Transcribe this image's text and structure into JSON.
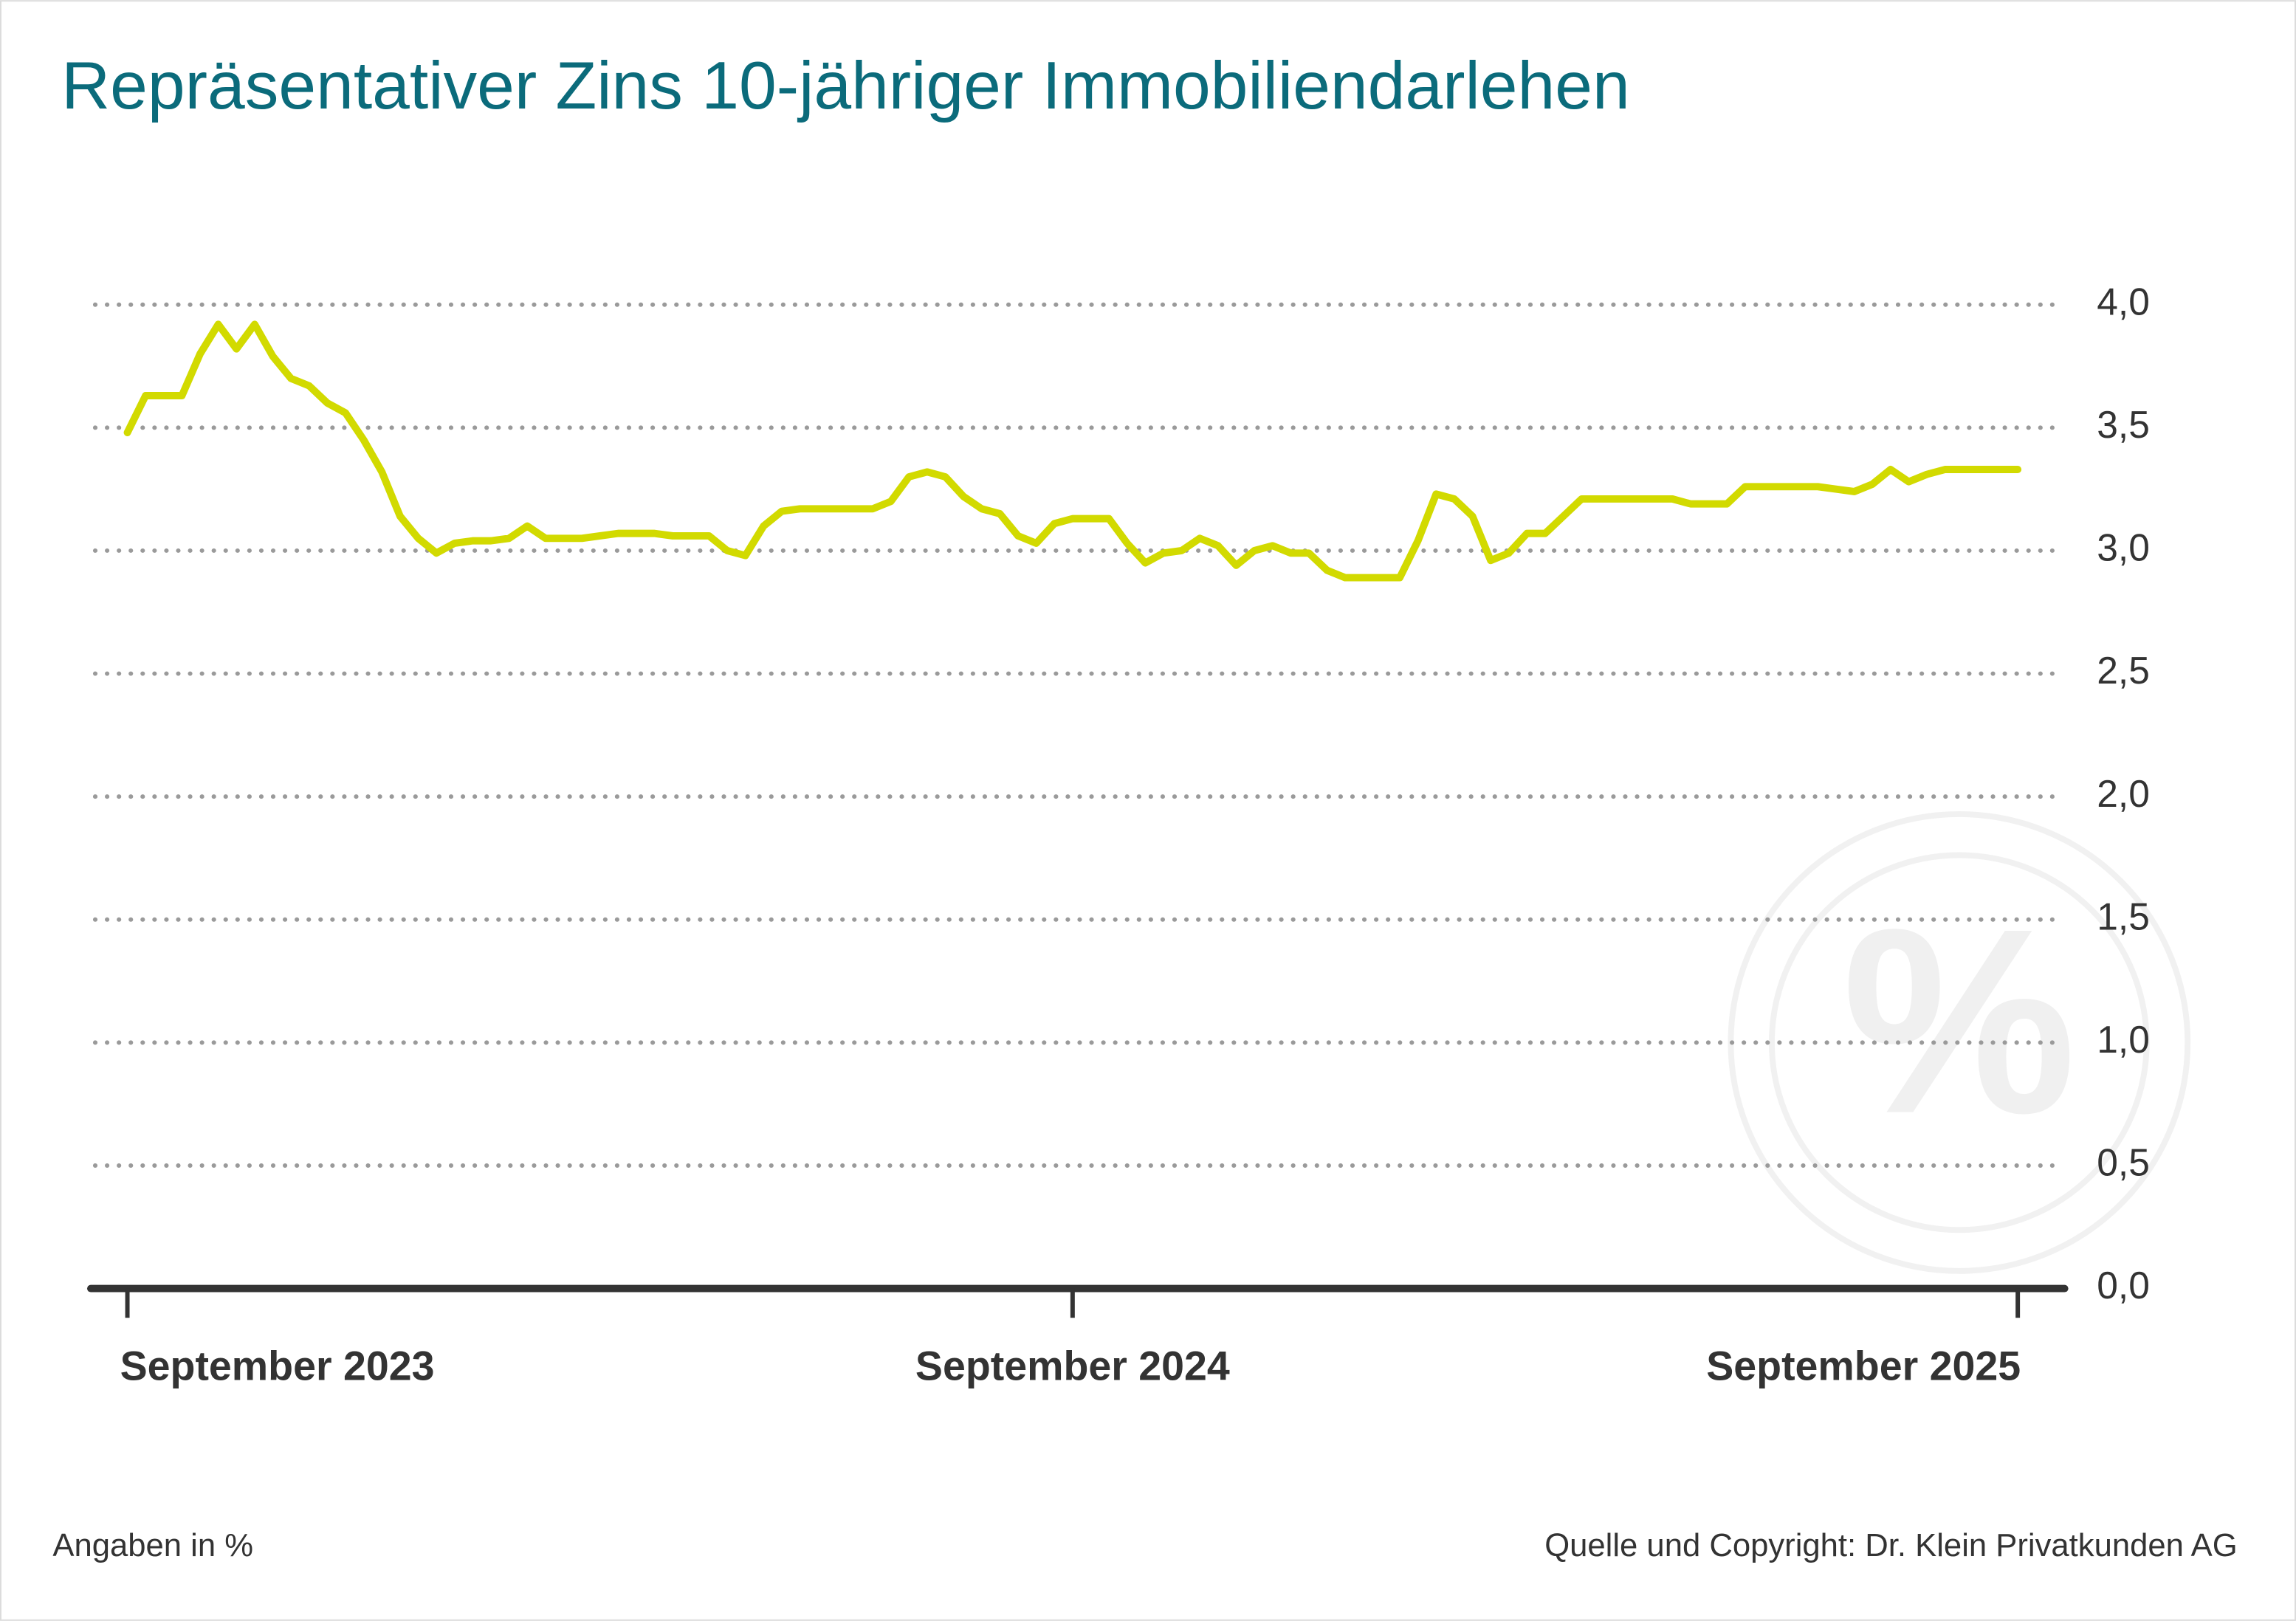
{
  "chart_data": {
    "type": "line",
    "title": "Repräsentativer Zins 10-jähriger Immobiliendarlehen",
    "note": "Angaben in %",
    "source": "Quelle und Copyright: Dr. Klein Privatkunden AG",
    "categories": [
      "September 2023",
      null,
      null,
      null,
      null,
      null,
      null,
      null,
      null,
      null,
      null,
      null,
      null,
      null,
      null,
      null,
      null,
      null,
      null,
      null,
      null,
      null,
      null,
      null,
      null,
      null,
      null,
      null,
      null,
      null,
      null,
      null,
      null,
      null,
      null,
      null,
      null,
      null,
      null,
      null,
      null,
      null,
      null,
      null,
      null,
      null,
      null,
      null,
      null,
      null,
      null,
      null,
      "September 2024",
      null,
      null,
      null,
      null,
      null,
      null,
      null,
      null,
      null,
      null,
      null,
      null,
      null,
      null,
      null,
      null,
      null,
      null,
      null,
      null,
      null,
      null,
      null,
      null,
      null,
      null,
      null,
      null,
      null,
      null,
      null,
      null,
      null,
      null,
      null,
      null,
      null,
      null,
      null,
      null,
      null,
      null,
      null,
      null,
      null,
      null,
      null,
      null,
      null,
      null,
      null,
      "September 2025"
    ],
    "values": [
      3.48,
      3.63,
      3.63,
      3.63,
      3.8,
      3.92,
      3.82,
      3.92,
      3.79,
      3.7,
      3.67,
      3.6,
      3.56,
      3.45,
      3.32,
      3.14,
      3.05,
      2.99,
      3.03,
      3.04,
      3.04,
      3.05,
      3.1,
      3.05,
      3.05,
      3.05,
      3.06,
      3.07,
      3.07,
      3.07,
      3.06,
      3.06,
      3.06,
      3.0,
      2.98,
      3.1,
      3.16,
      3.17,
      3.17,
      3.17,
      3.17,
      3.17,
      3.2,
      3.3,
      3.32,
      3.3,
      3.22,
      3.17,
      3.15,
      3.06,
      3.03,
      3.11,
      3.13,
      3.13,
      3.13,
      3.03,
      2.95,
      2.99,
      3.0,
      3.05,
      3.02,
      2.94,
      3.0,
      3.02,
      2.99,
      2.99,
      2.92,
      2.89,
      2.89,
      2.89,
      2.89,
      3.04,
      3.23,
      3.21,
      3.14,
      2.96,
      2.99,
      3.07,
      3.07,
      3.14,
      3.21,
      3.21,
      3.21,
      3.21,
      3.21,
      3.21,
      3.19,
      3.19,
      3.19,
      3.26,
      3.26,
      3.26,
      3.26,
      3.26,
      3.25,
      3.24,
      3.27,
      3.33,
      3.28,
      3.31,
      3.33,
      3.33,
      3.33,
      3.33,
      3.33
    ],
    "color": "#d2da00",
    "ylim": [
      0,
      4
    ],
    "yticks": [
      {
        "value": 0,
        "label": "0,0"
      },
      {
        "value": 0.5,
        "label": "0,5"
      },
      {
        "value": 1,
        "label": "1,0"
      },
      {
        "value": 1.5,
        "label": "1,5"
      },
      {
        "value": 2,
        "label": "2,0"
      },
      {
        "value": 2.5,
        "label": "2,5"
      },
      {
        "value": 3,
        "label": "3,0"
      },
      {
        "value": 3.5,
        "label": "3,5"
      },
      {
        "value": 4,
        "label": "4,0"
      }
    ],
    "grid": true
  }
}
